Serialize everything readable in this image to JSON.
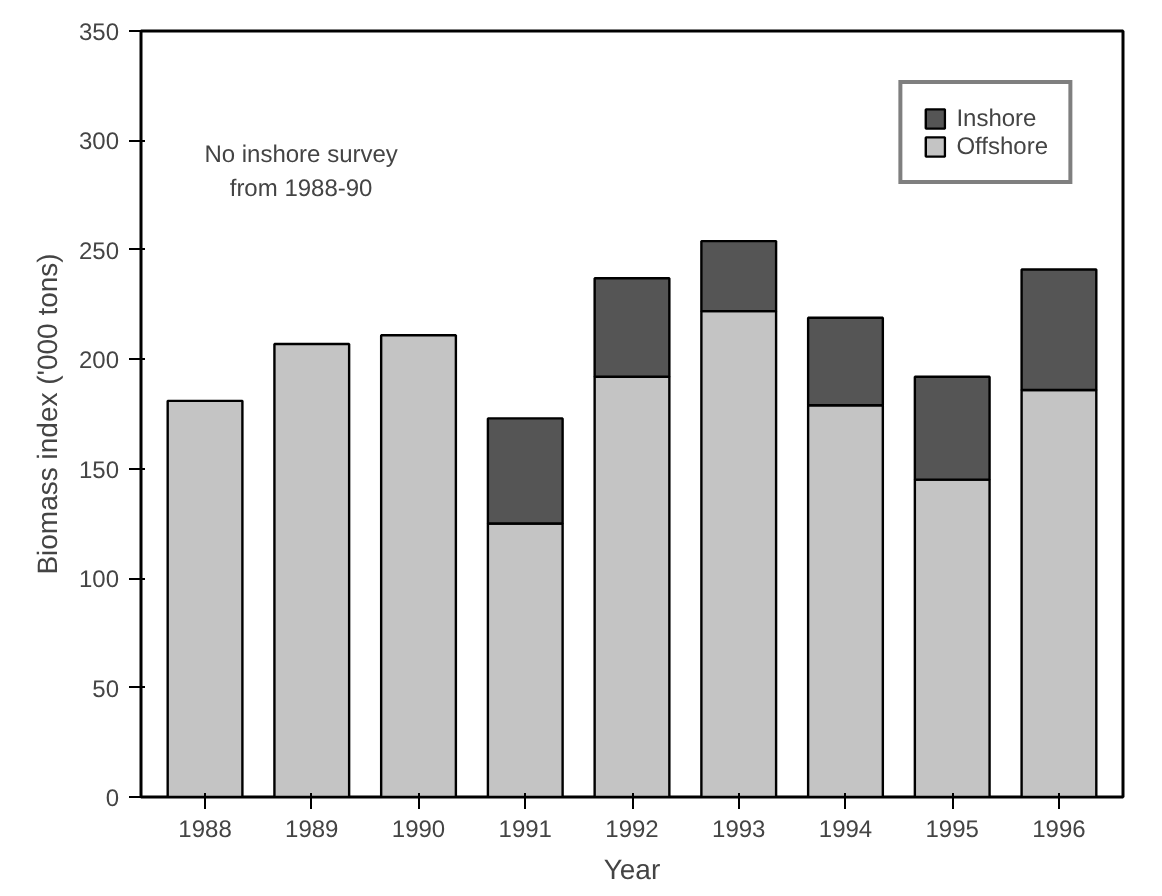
{
  "chart_data": {
    "type": "bar",
    "stacked": true,
    "xlabel": "Year",
    "ylabel": "Biomass index ('000 tons)",
    "categories": [
      "1988",
      "1989",
      "1990",
      "1991",
      "1992",
      "1993",
      "1994",
      "1995",
      "1996"
    ],
    "series": [
      {
        "name": "Offshore",
        "color": "#c4c4c4",
        "values": [
          181,
          207,
          211,
          125,
          192,
          222,
          179,
          145,
          186
        ]
      },
      {
        "name": "Inshore",
        "color": "#555555",
        "values": [
          null,
          null,
          null,
          48,
          45,
          32,
          40,
          47,
          55
        ]
      }
    ],
    "ylim": [
      0,
      350
    ],
    "yticks": [
      0,
      50,
      100,
      150,
      200,
      250,
      300,
      350
    ],
    "annotations": [
      "No inshore survey\nfrom 1988-90"
    ],
    "grid": false,
    "legend": "top right"
  }
}
